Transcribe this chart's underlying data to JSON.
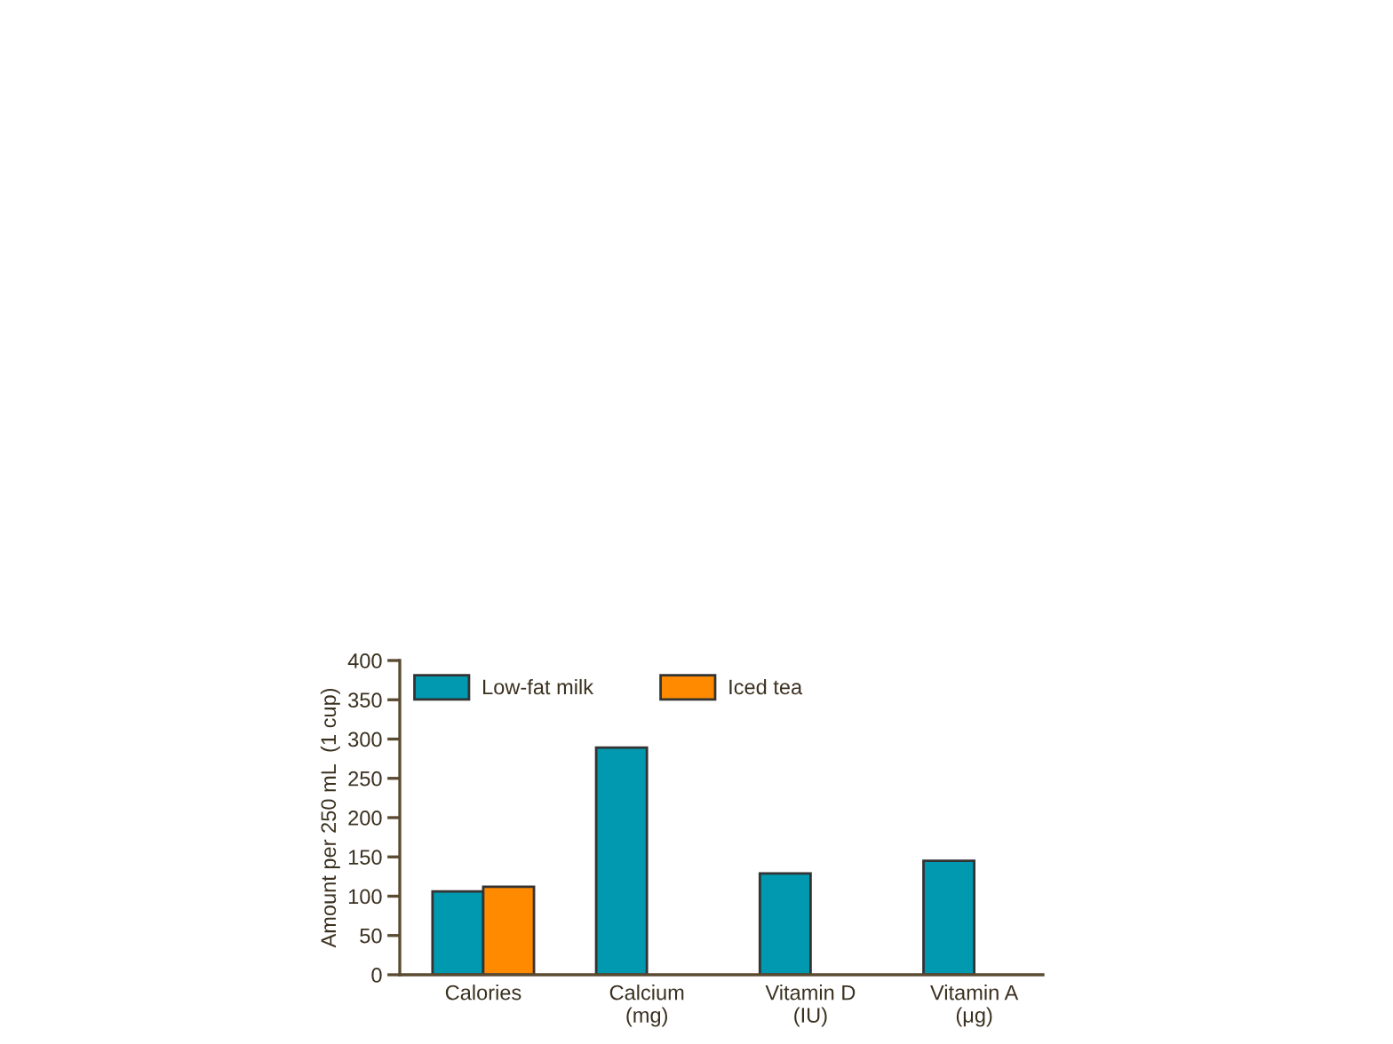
{
  "chart_data": {
    "type": "bar",
    "ylabel": "Amount per 250 mL  (1 cup)",
    "categories": [
      "Calories",
      "Calcium\n(mg)",
      "Vitamin D\n(IU)",
      "Vitamin A\n(μg)"
    ],
    "series": [
      {
        "name": "Low-fat milk",
        "color": "#0099b0",
        "values": [
          106,
          289,
          129,
          145
        ]
      },
      {
        "name": "Iced tea",
        "color": "#ff8a00",
        "values": [
          112,
          null,
          null,
          null
        ]
      }
    ],
    "ylim": [
      0,
      400
    ],
    "yticks": [
      0,
      50,
      100,
      150,
      200,
      250,
      300,
      350,
      400
    ],
    "grid": false,
    "legend": "top left"
  }
}
